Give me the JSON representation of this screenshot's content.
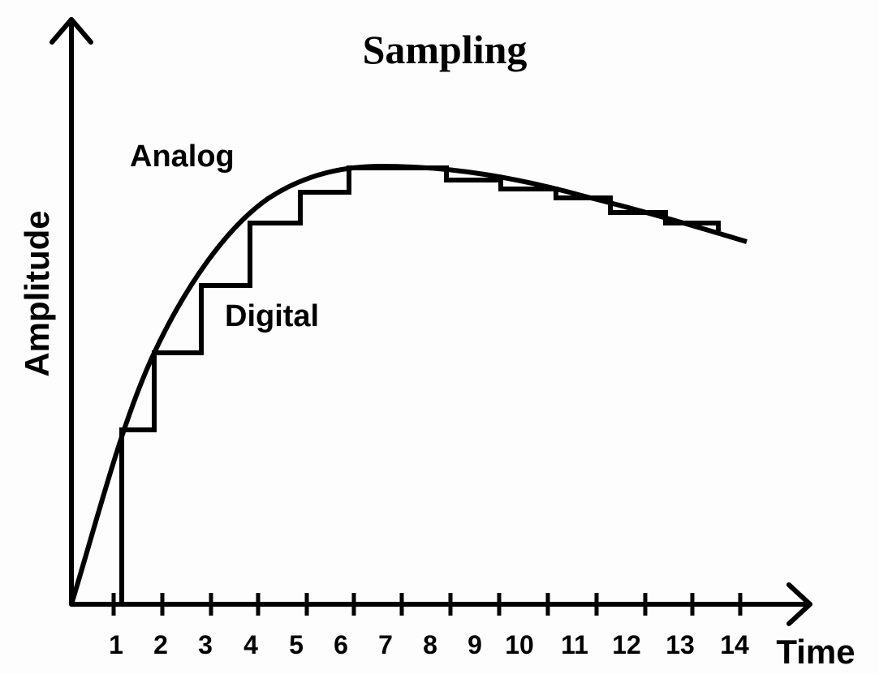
{
  "title": "Sampling",
  "labels": {
    "analog": "Analog",
    "digital": "Digital"
  },
  "y_axis": {
    "label": "Amplitude"
  },
  "x_axis": {
    "label": "Time",
    "ticks": [
      "1",
      "2",
      "3",
      "4",
      "5",
      "6",
      "7",
      "8",
      "9",
      "10",
      "11",
      "12",
      "13",
      "14"
    ]
  }
}
